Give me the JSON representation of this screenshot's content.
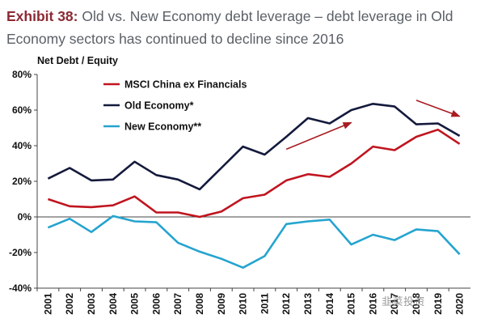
{
  "title": {
    "exhibit": "Exhibit 38:",
    "text": "Old vs. New Economy debt leverage – debt leverage in Old Economy sectors has continued to decline since 2016"
  },
  "watermark": "韭菜投资",
  "chart_data": {
    "type": "line",
    "ylabel": "Net Debt / Equity",
    "ylim": [
      -40,
      80
    ],
    "yticks": [
      -40,
      -20,
      0,
      20,
      40,
      60,
      80
    ],
    "ytick_labels": [
      "-40%",
      "-20%",
      "0%",
      "20%",
      "40%",
      "60%",
      "80%"
    ],
    "x": [
      "2001",
      "2002",
      "2003",
      "2004",
      "2005",
      "2006",
      "2007",
      "2008",
      "2009",
      "2010",
      "2011",
      "2012",
      "2013",
      "2014",
      "2015",
      "2016",
      "2017",
      "2018",
      "2019",
      "2020"
    ],
    "legend_position": "top-left",
    "series": [
      {
        "name": "MSCI China ex Financials",
        "color": "#c0151f",
        "values": [
          10,
          6,
          5.5,
          6.5,
          11.5,
          2.5,
          2.5,
          0,
          3,
          10.5,
          12.5,
          20.5,
          24,
          22.5,
          30,
          39.5,
          37.5,
          45,
          49,
          41
        ]
      },
      {
        "name": "Old Economy*",
        "color": "#141a3c",
        "values": [
          21.5,
          27.5,
          20.5,
          21,
          31,
          23.5,
          21,
          15.5,
          27.5,
          39.5,
          35,
          45,
          55.5,
          52.5,
          60,
          63.5,
          62,
          52,
          52.5,
          45.5
        ]
      },
      {
        "name": "New Economy**",
        "color": "#25a4cf",
        "values": [
          -6,
          -1,
          -8.5,
          0.5,
          -2.5,
          -3,
          -14.5,
          -19.5,
          -23.5,
          -28.5,
          -22,
          -4,
          -2.5,
          -1.5,
          -15.5,
          -10,
          -13,
          -7,
          -8,
          -21
        ]
      }
    ],
    "annotations": [
      {
        "type": "arrow",
        "from": [
          "2012",
          38
        ],
        "to": [
          "2015",
          53
        ],
        "color": "#a81c22"
      },
      {
        "type": "arrow",
        "from": [
          "2018",
          65.5
        ],
        "to": [
          "2020",
          56.5
        ],
        "color": "#a81c22"
      }
    ]
  }
}
